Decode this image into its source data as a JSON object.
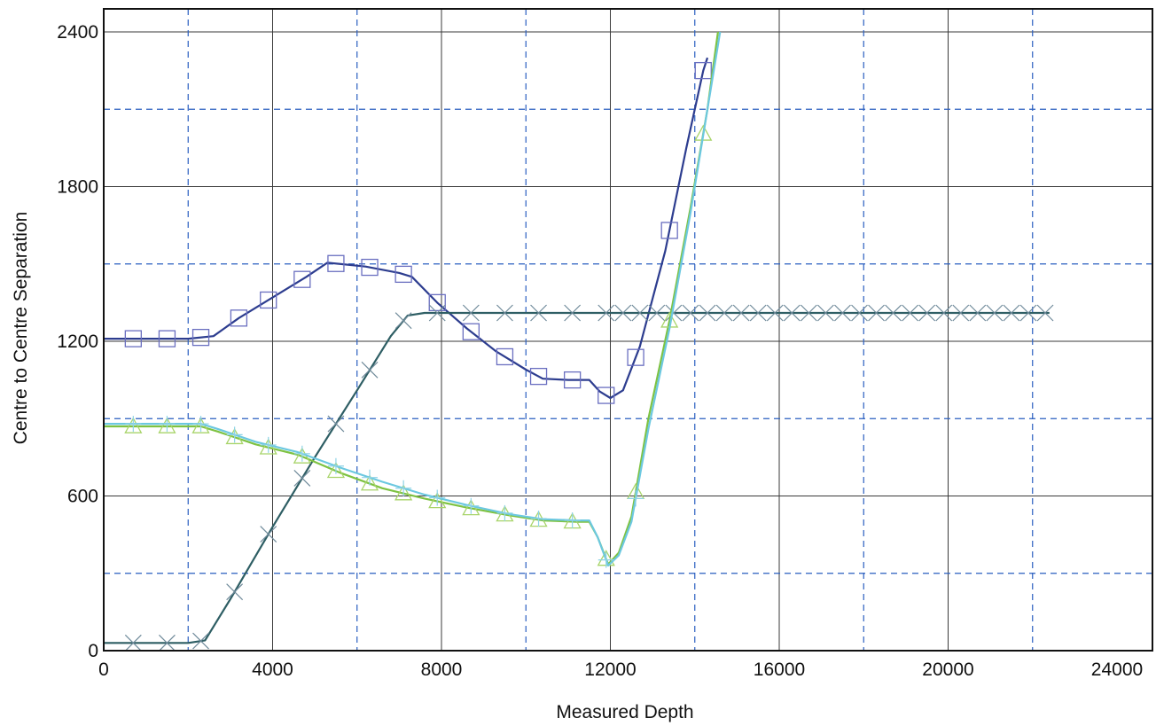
{
  "chart_data": {
    "type": "line",
    "xlabel": "Measured Depth",
    "ylabel": "Centre to Centre Separation",
    "xlim": [
      0,
      24000
    ],
    "ylim": [
      0,
      2400
    ],
    "x_ticks": [
      0,
      4000,
      8000,
      12000,
      16000,
      20000,
      24000
    ],
    "y_ticks": [
      0,
      600,
      1200,
      1800,
      2400
    ],
    "grid": {
      "major": "solid dark gray",
      "minor_vertical": [
        2000,
        6000,
        10000,
        14000,
        18000,
        22000
      ],
      "minor_horizontal": [
        300,
        900,
        1500,
        2100
      ],
      "minor_style": "dashed blue"
    },
    "series": [
      {
        "color": "#2d3d8f",
        "marker": "square",
        "points": [
          [
            0,
            1210
          ],
          [
            2000,
            1210
          ],
          [
            2600,
            1220
          ],
          [
            3200,
            1290
          ],
          [
            4000,
            1370
          ],
          [
            4800,
            1450
          ],
          [
            5300,
            1505
          ],
          [
            6200,
            1490
          ],
          [
            7000,
            1465
          ],
          [
            7300,
            1450
          ],
          [
            7900,
            1350
          ],
          [
            8600,
            1250
          ],
          [
            9300,
            1160
          ],
          [
            10000,
            1090
          ],
          [
            10400,
            1055
          ],
          [
            11000,
            1050
          ],
          [
            11500,
            1050
          ],
          [
            11750,
            1005
          ],
          [
            12000,
            980
          ],
          [
            12300,
            1010
          ],
          [
            12700,
            1180
          ],
          [
            13300,
            1550
          ],
          [
            13800,
            1950
          ],
          [
            14200,
            2250
          ],
          [
            14300,
            2300
          ]
        ],
        "marker_x": [
          700,
          1500,
          2300,
          3200,
          3900,
          4700,
          5500,
          6300,
          7100,
          7900,
          8700,
          9500,
          10300,
          11100,
          11900,
          12600,
          13400,
          14200
        ]
      },
      {
        "color": "#2e5e64",
        "marker": "x",
        "points": [
          [
            0,
            30
          ],
          [
            2000,
            30
          ],
          [
            2400,
            40
          ],
          [
            3000,
            200
          ],
          [
            4000,
            480
          ],
          [
            5000,
            750
          ],
          [
            6000,
            1010
          ],
          [
            6800,
            1220
          ],
          [
            7200,
            1300
          ],
          [
            7600,
            1310
          ],
          [
            8000,
            1310
          ],
          [
            22400,
            1310
          ]
        ],
        "marker_x": [
          700,
          1500,
          2300,
          3100,
          3900,
          4700,
          5500,
          6300,
          7100,
          7900,
          8700,
          9500,
          10300,
          11100,
          11900,
          12300,
          12700,
          13100,
          13500,
          13900,
          14300,
          14700,
          15100,
          15500,
          15900,
          16300,
          16700,
          17100,
          17500,
          17900,
          18300,
          18700,
          19100,
          19500,
          19900,
          20300,
          20700,
          21100,
          21500,
          21900,
          22300
        ]
      },
      {
        "color": "#7ec242",
        "marker": "triangle",
        "points": [
          [
            0,
            870
          ],
          [
            2300,
            870
          ],
          [
            2700,
            850
          ],
          [
            3600,
            800
          ],
          [
            4600,
            760
          ],
          [
            5600,
            690
          ],
          [
            6600,
            630
          ],
          [
            7600,
            590
          ],
          [
            8600,
            555
          ],
          [
            9600,
            525
          ],
          [
            10400,
            505
          ],
          [
            11200,
            500
          ],
          [
            11500,
            500
          ],
          [
            11700,
            440
          ],
          [
            11950,
            335
          ],
          [
            12200,
            380
          ],
          [
            12500,
            520
          ],
          [
            12900,
            900
          ],
          [
            13400,
            1280
          ],
          [
            13900,
            1720
          ],
          [
            14300,
            2100
          ],
          [
            14550,
            2400
          ]
        ],
        "marker_x": [
          700,
          1500,
          2300,
          3100,
          3900,
          4700,
          5500,
          6300,
          7100,
          7900,
          8700,
          9500,
          10300,
          11100,
          11900,
          12600,
          13400,
          14200
        ]
      },
      {
        "color": "#6cc8e0",
        "marker": "plus",
        "points": [
          [
            0,
            880
          ],
          [
            2300,
            880
          ],
          [
            2700,
            860
          ],
          [
            3600,
            810
          ],
          [
            4600,
            770
          ],
          [
            5600,
            710
          ],
          [
            6600,
            655
          ],
          [
            7600,
            605
          ],
          [
            8600,
            565
          ],
          [
            9600,
            530
          ],
          [
            10400,
            510
          ],
          [
            11200,
            505
          ],
          [
            11500,
            505
          ],
          [
            11700,
            440
          ],
          [
            11950,
            330
          ],
          [
            12200,
            370
          ],
          [
            12500,
            500
          ],
          [
            12900,
            860
          ],
          [
            13400,
            1250
          ],
          [
            13900,
            1700
          ],
          [
            14300,
            2100
          ],
          [
            14600,
            2400
          ]
        ],
        "marker_x": [
          700,
          1500,
          2300,
          3100,
          3900,
          4700,
          5500,
          6300,
          7100,
          7900,
          8700,
          9500,
          10300,
          11100,
          11900,
          12600
        ]
      }
    ]
  }
}
